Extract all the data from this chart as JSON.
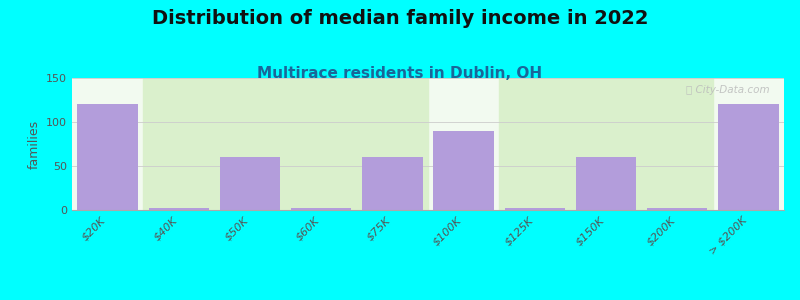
{
  "title": "Distribution of median family income in 2022",
  "subtitle": "Multirace residents in Dublin, OH",
  "ylabel": "families",
  "background_color": "#00FFFF",
  "bar_color": "#b39ddb",
  "categories": [
    "$20K",
    "$40K",
    "$50K",
    "$60K",
    "$75K",
    "$100K",
    "$125K",
    "$150K",
    "$200K",
    "> $200K"
  ],
  "values": [
    120,
    2,
    60,
    2,
    60,
    90,
    2,
    60,
    2,
    120
  ],
  "green_bg_ranges": [
    [
      0.5,
      4.5
    ],
    [
      5.5,
      8.5
    ]
  ],
  "plot_bg_color": "#f2faf0",
  "green_range_color": "#daf0cc",
  "ylim": [
    0,
    150
  ],
  "yticks": [
    0,
    50,
    100,
    150
  ],
  "watermark": "City-Data.com",
  "title_fontsize": 14,
  "subtitle_fontsize": 11,
  "ylabel_fontsize": 9,
  "tick_fontsize": 8
}
